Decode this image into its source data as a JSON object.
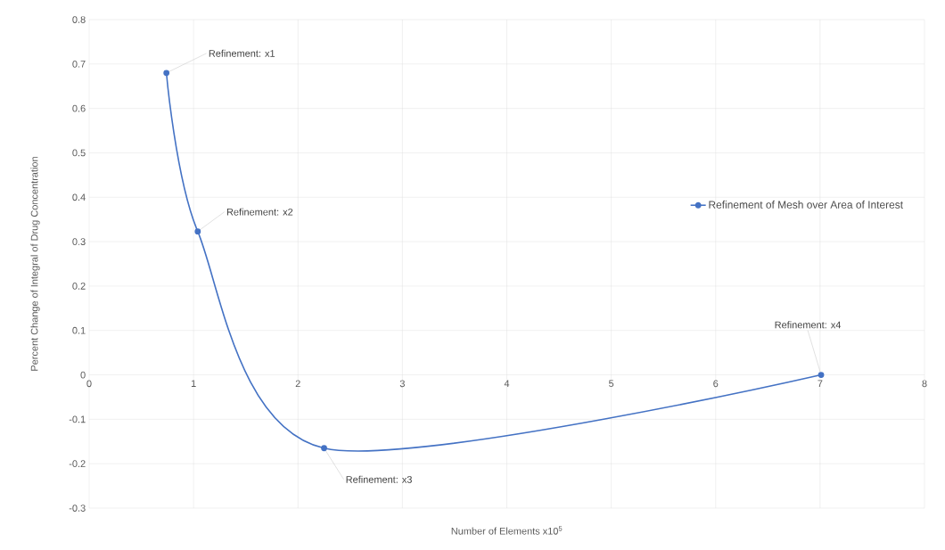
{
  "chart_data": {
    "type": "line",
    "xlabel": "Number of Elements x10$^{5}$",
    "ylabel": "Percent Change of Integral of Drug Concentration",
    "x": [
      0.74,
      1.04,
      2.25,
      7.01
    ],
    "series": [
      {
        "name": "Refinement of Mesh over Area of Interest",
        "color": "#4472c4",
        "values": [
          0.68,
          0.323,
          -0.165,
          0.0
        ]
      }
    ],
    "annotations": [
      {
        "text": "Refinement: x1",
        "x": 0.74,
        "y": 0.68
      },
      {
        "text": "Refinement: x2",
        "x": 1.04,
        "y": 0.323
      },
      {
        "text": "Refinement: x3",
        "x": 2.25,
        "y": -0.165
      },
      {
        "text": "Refinement: x4",
        "x": 7.01,
        "y": 0.0
      }
    ],
    "xlim": [
      0,
      8
    ],
    "ylim": [
      -0.3,
      0.8
    ],
    "xticks": [
      0,
      1,
      2,
      3,
      4,
      5,
      6,
      7,
      8
    ],
    "yticks": [
      -0.3,
      -0.2,
      -0.1,
      0,
      0.1,
      0.2,
      0.3,
      0.4,
      0.5,
      0.6,
      0.7,
      0.8
    ],
    "grid": true,
    "legend": "right",
    "marker": "circle",
    "line_style": "solid"
  }
}
